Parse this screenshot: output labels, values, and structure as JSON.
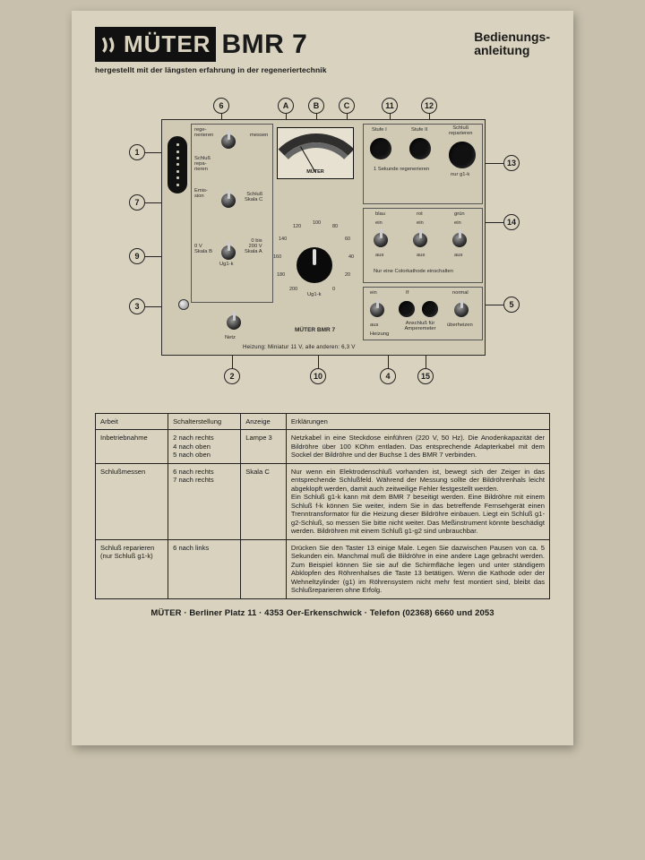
{
  "header": {
    "brand": "MÜTER",
    "model": "BMR 7",
    "subtitle_line1": "Bedienungs-",
    "subtitle_line2": "anleitung",
    "tagline": "hergestellt mit der längsten erfahrung in der regeneriertechnik"
  },
  "panel": {
    "meter_brand": "MÜTER",
    "device_label": "MÜTER BMR 7",
    "bottom_note": "Heizung: Miniatur 11 V, alle anderen: 6,3 V",
    "dial_label": "Ug1-k",
    "dial_scale": [
      "0",
      "20",
      "40",
      "60",
      "80",
      "100",
      "120",
      "140",
      "160",
      "180",
      "200"
    ],
    "controls": {
      "regenerieren": "rege-\nnerieren",
      "messen": "messen",
      "schluss_rep": "Schluß\nrepa-\nrieren",
      "emission": "Emis-\nsion",
      "schluss_skala_c": "Schluß\nSkala C",
      "ov_skala_b": "0 V\nSkala B",
      "ug1_label": "Ug1-k",
      "skala_a": "0 bis\n200 V\nSkala A",
      "netz": "Netz",
      "stufe1": "Stufe I",
      "stufe2": "Stufe II",
      "schluss_reparieren": "Schluß\nreparieren",
      "regen_note": "1 Sekunde regenerieren",
      "nur_g1k": "nur g1-k",
      "blau": "blau",
      "rot": "rot",
      "gruen": "grün",
      "ein": "ein",
      "aus": "aus",
      "color_note": "Nur eine Colorkathode einschalten",
      "if_label": "If",
      "amperemeter": "Anschluß für\nAmperemeter",
      "heizung": "Heizung",
      "normal": "normal",
      "ueberheizen": "überheizen"
    },
    "callouts": {
      "c1": "1",
      "c2": "2",
      "c3": "3",
      "c4": "4",
      "c5": "5",
      "c6": "6",
      "c7": "7",
      "c9": "9",
      "c10": "10",
      "c11": "11",
      "c12": "12",
      "c13": "13",
      "c14": "14",
      "c15": "15",
      "cA": "A",
      "cB": "B",
      "cC": "C"
    }
  },
  "table": {
    "columns": [
      "Arbeit",
      "Schalterstellung",
      "Anzeige",
      "Erklärungen"
    ],
    "rows": [
      {
        "arbeit": "Inbetriebnahme",
        "schalt": "2 nach rechts\n4 nach oben\n5 nach oben",
        "anzeige": "Lampe 3",
        "erkl": "Netzkabel in eine Steckdose einführen (220 V, 50 Hz). Die Anodenkapazität der Bildröhre über 100 KOhm entladen. Das entsprechende Adapterkabel mit dem Sockel der Bildröhre und der Buchse 1 des BMR 7 verbinden."
      },
      {
        "arbeit": "Schlußmessen",
        "schalt": "6 nach rechts\n7 nach rechts",
        "anzeige": "Skala C",
        "erkl": "Nur wenn ein Elektrodenschluß vorhanden ist, bewegt sich der Zeiger in das entsprechende Schlußfeld. Während der Messung sollte der Bildröhrenhals leicht abgeklopft werden, damit auch zeitweilige Fehler festgestellt werden.\nEin Schluß g1-k kann mit dem BMR 7 beseitigt werden. Eine Bildröhre mit einem Schluß f-k können Sie weiter, indem Sie in das betreffende Fernsehgerät einen Trenntransformator für die Heizung dieser Bildröhre einbauen. Liegt ein Schluß g1-g2-Schluß, so messen Sie bitte nicht weiter. Das Meßinstrument könnte beschädigt werden. Bildröhren mit einem Schluß g1-g2 sind unbrauchbar."
      },
      {
        "arbeit": "Schluß reparieren\n(nur Schluß g1-k)",
        "schalt": "6 nach links",
        "anzeige": "",
        "erkl": "Drücken Sie den Taster 13 einige Male. Legen Sie dazwischen Pausen von ca. 5 Sekunden ein. Manchmal muß die Bildröhre in eine andere Lage gebracht werden. Zum Beispiel können Sie sie auf die Schirmfläche legen und unter ständigem Abklopfen des Röhrenhalses die Taste 13 betätigen. Wenn die Kathode oder der Wehneltzylinder (g1) im Röhrensystem nicht mehr fest montiert sind, bleibt das Schlußreparieren ohne Erfolg."
      }
    ]
  },
  "footer": {
    "text": "MÜTER · Berliner Platz 11 · 4353 Oer-Erkenschwick · Telefon (02368) 6660 und 2053"
  },
  "colors": {
    "page_bg": "#d8d2be",
    "wall_bg": "#c8c0ac",
    "ink": "#1a1a1a",
    "panel_bg": "#d0c9b4"
  }
}
